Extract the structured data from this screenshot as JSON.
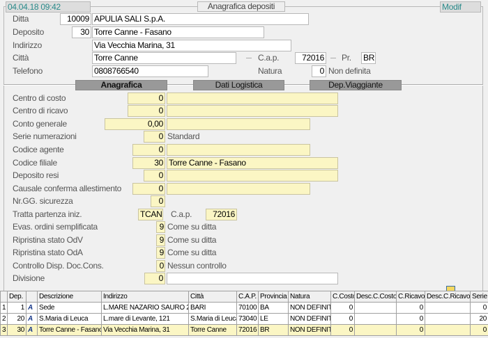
{
  "header": {
    "datetime": "04.04.18 09:42",
    "title": "Anagrafica depositi",
    "mode": "Modif"
  },
  "top": {
    "ditta": {
      "label": "Ditta",
      "code": "10009",
      "name": "APULIA SALI S.p.A."
    },
    "deposito": {
      "label": "Deposito",
      "code": "30",
      "name": "Torre Canne - Fasano"
    },
    "indirizzo": {
      "label": "Indirizzo",
      "value": "Via Vecchia Marina, 31"
    },
    "citta": {
      "label": "Città",
      "value": "Torre Canne",
      "cap_label": "C.a.p.",
      "cap": "72016",
      "pr_label": "Pr.",
      "pr": "BR"
    },
    "telefono": {
      "label": "Telefono",
      "value": "0808766540",
      "natura_label": "Natura",
      "natura": "0",
      "natura_desc": "Non definita"
    }
  },
  "tabs": [
    "Anagrafica",
    "Dati Logistica",
    "Dep.Viaggiante"
  ],
  "fields": {
    "centro_costo": {
      "label": "Centro di costo",
      "value": "0",
      "desc": ""
    },
    "centro_ricavo": {
      "label": "Centro di ricavo",
      "value": "0",
      "desc": ""
    },
    "conto_generale": {
      "label": "Conto generale",
      "value": "0,00",
      "desc": ""
    },
    "serie": {
      "label": "Serie numerazioni",
      "value": "0",
      "desc": "Standard"
    },
    "agente": {
      "label": "Codice agente",
      "value": "0",
      "desc": ""
    },
    "filiale": {
      "label": "Codice filiale",
      "value": "30",
      "desc": "Torre Canne - Fasano"
    },
    "resi": {
      "label": "Deposito resi",
      "value": "0",
      "desc": ""
    },
    "causale": {
      "label": "Causale conferma allestimento",
      "value": "0",
      "desc": ""
    },
    "gg": {
      "label": "Nr.GG. sicurezza",
      "value": "0"
    },
    "tratta": {
      "label": "Tratta partenza iniz.",
      "value": "TCAN",
      "cap_label": "C.a.p.",
      "cap": "72016"
    },
    "evas": {
      "label": "Evas. ordini semplificata",
      "value": "9",
      "desc": "Come su ditta"
    },
    "odv": {
      "label": "Ripristina stato OdV",
      "value": "9",
      "desc": "Come su ditta"
    },
    "oda": {
      "label": "Ripristina stato OdA",
      "value": "9",
      "desc": "Come su ditta"
    },
    "controllo": {
      "label": "Controllo Disp. Doc.Cons.",
      "value": "0",
      "desc": "Nessun controllo"
    },
    "divisione": {
      "label": "Divisione",
      "value": "0",
      "desc": ""
    }
  },
  "table": {
    "columns": [
      "",
      "Dep.",
      "",
      "Descrizione",
      "Indirizzo",
      "Città",
      "C.A.P.",
      "Provincia",
      "Natura",
      "C.Costo",
      "Desc.C.Costo",
      "C.Ricavo",
      "Desc.C.Ricavo",
      "Serie"
    ],
    "rows": [
      [
        "1",
        "1",
        "",
        "Sede",
        "L.MARE NAZARIO SAURO 211",
        "BARI",
        "70100",
        "BA",
        "NON DEFINITA",
        "0",
        "",
        "0",
        "",
        "0"
      ],
      [
        "2",
        "20",
        "",
        "S.Maria di Leuca",
        "L.mare di Levante, 121",
        "S.Maria di Leuca",
        "73040",
        "LE",
        "NON DEFINITA",
        "0",
        "",
        "0",
        "",
        "20"
      ],
      [
        "3",
        "30",
        "",
        "Torre Canne - Fasano",
        "Via Vecchia Marina, 31",
        "Torre Canne",
        "72016",
        "BR",
        "NON DEFINITA",
        "0",
        "",
        "0",
        "",
        "0"
      ]
    ]
  }
}
